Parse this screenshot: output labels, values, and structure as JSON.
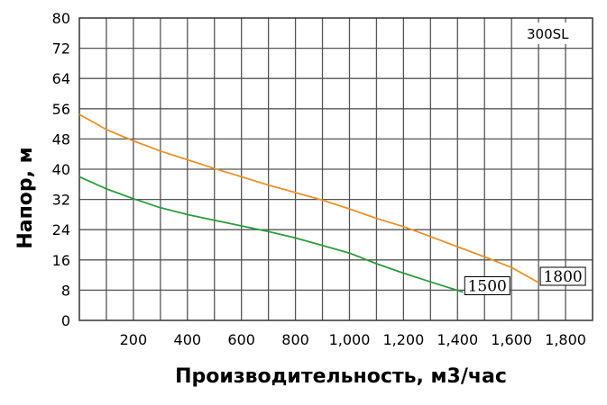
{
  "chart_data": {
    "type": "line",
    "title": "",
    "model_label": "300SL",
    "xlabel": "Производительность, м3/час",
    "ylabel": "Напор, м",
    "xlim": [
      0,
      1900
    ],
    "ylim": [
      0,
      80
    ],
    "x_ticks": [
      200,
      400,
      600,
      800,
      1000,
      1200,
      1400,
      1600,
      1800
    ],
    "x_tick_labels": [
      "200",
      "400",
      "600",
      "800",
      "1,000",
      "1,200",
      "1,400",
      "1,600",
      "1,800"
    ],
    "y_ticks": [
      0,
      8,
      16,
      24,
      32,
      40,
      48,
      56,
      64,
      72,
      80
    ],
    "y_tick_labels": [
      "0",
      "8",
      "16",
      "24",
      "32",
      "40",
      "48",
      "56",
      "64",
      "72",
      "80"
    ],
    "grid": true,
    "series": [
      {
        "name": "1800",
        "color": "#e8912e",
        "x": [
          0,
          100,
          200,
          300,
          400,
          500,
          600,
          700,
          800,
          900,
          1000,
          1100,
          1200,
          1300,
          1400,
          1500,
          1600,
          1700
        ],
        "y": [
          54.5,
          50.5,
          47.5,
          44.8,
          42.5,
          40.2,
          38.0,
          35.8,
          33.8,
          31.8,
          29.5,
          27.0,
          24.8,
          22.2,
          19.5,
          16.8,
          14.0,
          10.0
        ]
      },
      {
        "name": "1500",
        "color": "#2e9a3e",
        "x": [
          0,
          100,
          200,
          300,
          400,
          500,
          600,
          700,
          800,
          900,
          1000,
          1100,
          1200,
          1300,
          1420
        ],
        "y": [
          38.0,
          34.8,
          32.2,
          29.8,
          28.0,
          26.5,
          25.0,
          23.5,
          21.8,
          19.8,
          17.8,
          15.0,
          12.5,
          10.2,
          7.5
        ]
      }
    ]
  }
}
